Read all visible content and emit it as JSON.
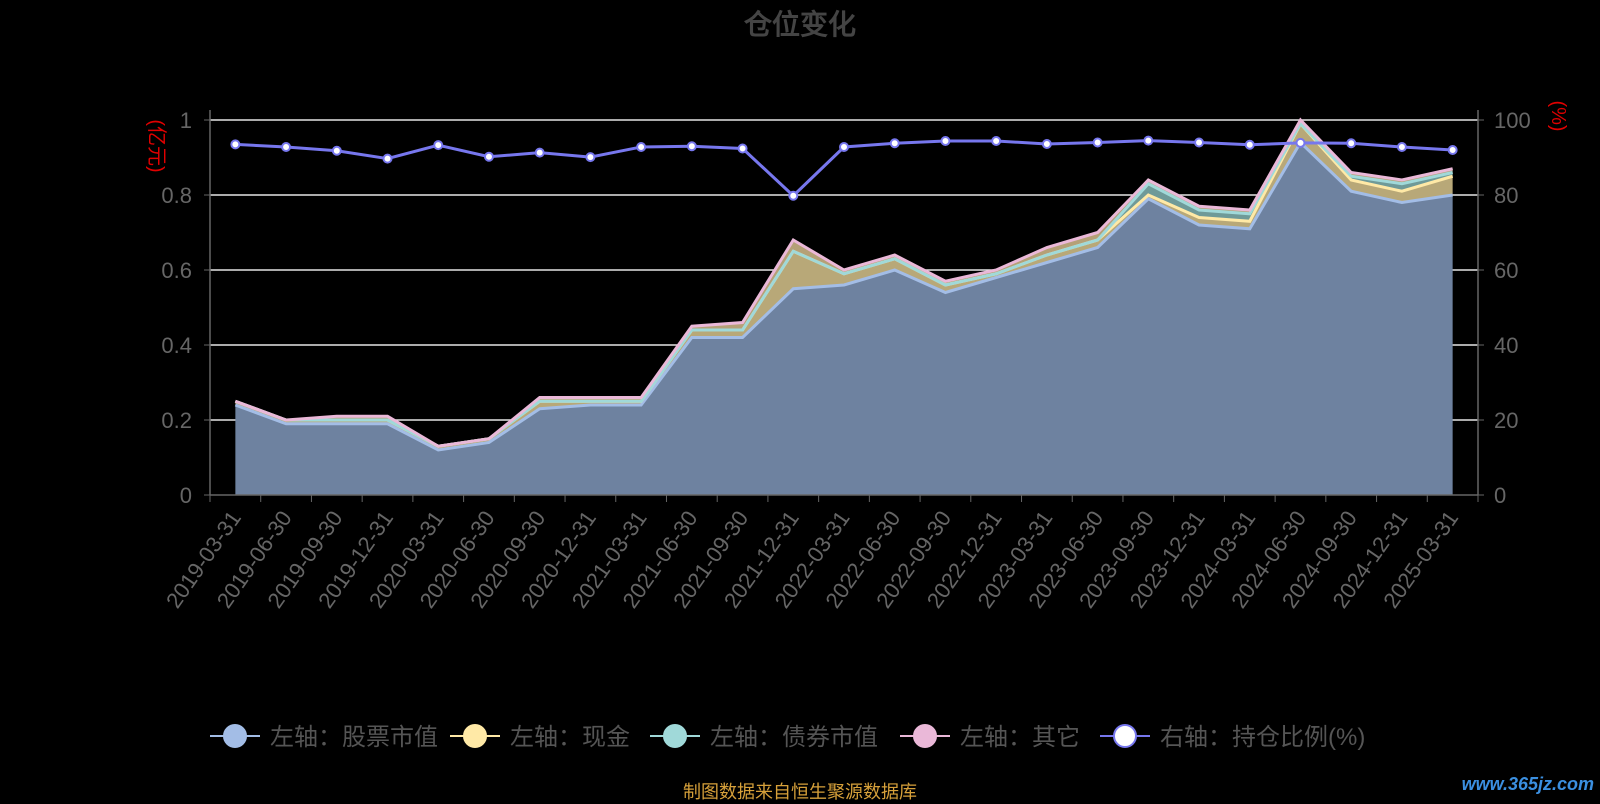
{
  "chart_data": {
    "type": "area",
    "title": "仓位变化",
    "left_unit": "(亿元)",
    "right_unit": "(%)",
    "left_ticks": [
      "0",
      "0.2",
      "0.4",
      "0.6",
      "0.8",
      "1"
    ],
    "right_ticks": [
      "0",
      "20",
      "40",
      "60",
      "80",
      "100"
    ],
    "ylim_left": [
      0,
      1
    ],
    "ylim_right": [
      0,
      100
    ],
    "grid": true,
    "legend_position": "bottom",
    "categories": [
      "2019-03-31",
      "2019-06-30",
      "2019-09-30",
      "2019-12-31",
      "2020-03-31",
      "2020-06-30",
      "2020-09-30",
      "2020-12-31",
      "2021-03-31",
      "2021-06-30",
      "2021-09-30",
      "2021-12-31",
      "2022-03-31",
      "2022-06-30",
      "2022-09-30",
      "2022-12-31",
      "2023-03-31",
      "2023-06-30",
      "2023-09-30",
      "2023-12-31",
      "2024-03-31",
      "2024-06-30",
      "2024-09-30",
      "2024-12-31",
      "2025-03-31"
    ],
    "series": [
      {
        "name": "左轴：股票市值",
        "axis": "left",
        "stack": true,
        "color": "#a3bde6",
        "values": [
          0.24,
          0.19,
          0.19,
          0.19,
          0.12,
          0.14,
          0.23,
          0.24,
          0.24,
          0.42,
          0.42,
          0.55,
          0.56,
          0.6,
          0.54,
          0.58,
          0.62,
          0.66,
          0.79,
          0.72,
          0.71,
          0.94,
          0.81,
          0.78,
          0.8
        ]
      },
      {
        "name": "左轴：现金",
        "axis": "left",
        "stack": true,
        "color": "#ffe9a6",
        "values": [
          0.01,
          0.01,
          0.01,
          0.01,
          0.01,
          0.01,
          0.02,
          0.01,
          0.01,
          0.02,
          0.02,
          0.1,
          0.03,
          0.03,
          0.02,
          0.01,
          0.02,
          0.02,
          0.01,
          0.02,
          0.02,
          0.05,
          0.03,
          0.03,
          0.05
        ]
      },
      {
        "name": "左轴：债券市值",
        "axis": "left",
        "stack": true,
        "color": "#a0d9d9",
        "values": [
          0,
          0,
          0,
          0,
          0,
          0,
          0,
          0,
          0,
          0,
          0,
          0,
          0,
          0,
          0,
          0,
          0,
          0,
          0.03,
          0.02,
          0.02,
          0,
          0.01,
          0.02,
          0.01
        ]
      },
      {
        "name": "左轴：其它",
        "axis": "left",
        "stack": true,
        "color": "#eab8d8",
        "values": [
          0,
          0,
          0.01,
          0.01,
          0,
          0,
          0.01,
          0.01,
          0.01,
          0.01,
          0.02,
          0.03,
          0.01,
          0.01,
          0.01,
          0.01,
          0.02,
          0.02,
          0.01,
          0.01,
          0.01,
          0.01,
          0.01,
          0.01,
          0.01
        ]
      },
      {
        "name": "右轴：持仓比例(%)",
        "axis": "right",
        "stack": false,
        "color": "#7777ee",
        "values": [
          93.5,
          92.8,
          91.8,
          89.7,
          93.3,
          90.2,
          91.3,
          90.1,
          92.8,
          93.0,
          92.4,
          79.8,
          92.8,
          93.8,
          94.4,
          94.4,
          93.6,
          94.0,
          94.5,
          94.0,
          93.4,
          93.9,
          93.8,
          92.8,
          92.0
        ]
      }
    ]
  },
  "footer": {
    "source": "制图数据来自恒生聚源数据库",
    "watermark": "www.365jz.com"
  }
}
